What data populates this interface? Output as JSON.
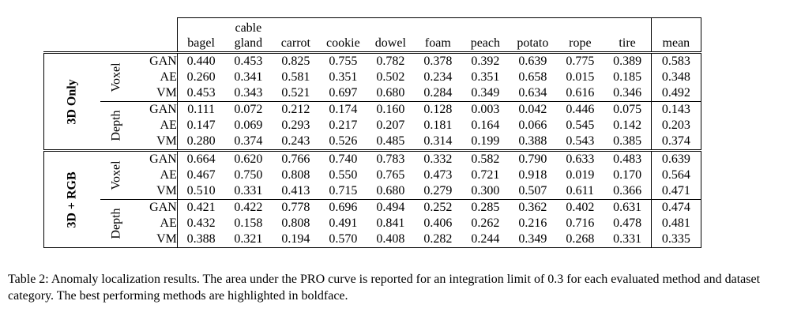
{
  "table": {
    "columns": [
      "bagel",
      "cable gland",
      "carrot",
      "cookie",
      "dowel",
      "foam",
      "peach",
      "potato",
      "rope",
      "tire",
      "mean"
    ],
    "groups": [
      {
        "label": "3D Only",
        "subgroups": [
          {
            "label": "Voxel",
            "rows": [
              {
                "method": "GAN",
                "values": [
                  "0.440",
                  "0.453",
                  "0.825",
                  "0.755",
                  "0.782",
                  "0.378",
                  "0.392",
                  "0.639",
                  "0.775",
                  "0.389",
                  "0.583"
                ],
                "bold": [
                  false,
                  true,
                  true,
                  true,
                  true,
                  true,
                  true,
                  false,
                  true,
                  true,
                  true
                ]
              },
              {
                "method": "AE",
                "values": [
                  "0.260",
                  "0.341",
                  "0.581",
                  "0.351",
                  "0.502",
                  "0.234",
                  "0.351",
                  "0.658",
                  "0.015",
                  "0.185",
                  "0.348"
                ],
                "bold": [
                  false,
                  false,
                  false,
                  false,
                  false,
                  false,
                  false,
                  true,
                  false,
                  false,
                  false
                ]
              },
              {
                "method": "VM",
                "values": [
                  "0.453",
                  "0.343",
                  "0.521",
                  "0.697",
                  "0.680",
                  "0.284",
                  "0.349",
                  "0.634",
                  "0.616",
                  "0.346",
                  "0.492"
                ],
                "bold": [
                  true,
                  false,
                  false,
                  false,
                  false,
                  false,
                  false,
                  false,
                  false,
                  false,
                  false
                ]
              }
            ]
          },
          {
            "label": "Depth",
            "rows": [
              {
                "method": "GAN",
                "values": [
                  "0.111",
                  "0.072",
                  "0.212",
                  "0.174",
                  "0.160",
                  "0.128",
                  "0.003",
                  "0.042",
                  "0.446",
                  "0.075",
                  "0.143"
                ],
                "bold": [
                  false,
                  false,
                  false,
                  false,
                  false,
                  false,
                  false,
                  false,
                  false,
                  false,
                  false
                ]
              },
              {
                "method": "AE",
                "values": [
                  "0.147",
                  "0.069",
                  "0.293",
                  "0.217",
                  "0.207",
                  "0.181",
                  "0.164",
                  "0.066",
                  "0.545",
                  "0.142",
                  "0.203"
                ],
                "bold": [
                  false,
                  false,
                  false,
                  false,
                  false,
                  false,
                  false,
                  false,
                  false,
                  false,
                  false
                ]
              },
              {
                "method": "VM",
                "values": [
                  "0.280",
                  "0.374",
                  "0.243",
                  "0.526",
                  "0.485",
                  "0.314",
                  "0.199",
                  "0.388",
                  "0.543",
                  "0.385",
                  "0.374"
                ],
                "bold": [
                  false,
                  false,
                  false,
                  false,
                  false,
                  false,
                  false,
                  false,
                  false,
                  false,
                  false
                ]
              }
            ]
          }
        ]
      },
      {
        "label": "3D + RGB",
        "subgroups": [
          {
            "label": "Voxel",
            "rows": [
              {
                "method": "GAN",
                "values": [
                  "0.664",
                  "0.620",
                  "0.766",
                  "0.740",
                  "0.783",
                  "0.332",
                  "0.582",
                  "0.790",
                  "0.633",
                  "0.483",
                  "0.639"
                ],
                "bold": [
                  true,
                  false,
                  false,
                  true,
                  false,
                  false,
                  false,
                  false,
                  false,
                  false,
                  true
                ]
              },
              {
                "method": "AE",
                "values": [
                  "0.467",
                  "0.750",
                  "0.808",
                  "0.550",
                  "0.765",
                  "0.473",
                  "0.721",
                  "0.918",
                  "0.019",
                  "0.170",
                  "0.564"
                ],
                "bold": [
                  false,
                  true,
                  true,
                  false,
                  false,
                  true,
                  true,
                  true,
                  false,
                  false,
                  false
                ]
              },
              {
                "method": "VM",
                "values": [
                  "0.510",
                  "0.331",
                  "0.413",
                  "0.715",
                  "0.680",
                  "0.279",
                  "0.300",
                  "0.507",
                  "0.611",
                  "0.366",
                  "0.471"
                ],
                "bold": [
                  false,
                  false,
                  false,
                  false,
                  false,
                  false,
                  false,
                  false,
                  false,
                  false,
                  false
                ]
              }
            ]
          },
          {
            "label": "Depth",
            "rows": [
              {
                "method": "GAN",
                "values": [
                  "0.421",
                  "0.422",
                  "0.778",
                  "0.696",
                  "0.494",
                  "0.252",
                  "0.285",
                  "0.362",
                  "0.402",
                  "0.631",
                  "0.474"
                ],
                "bold": [
                  false,
                  false,
                  false,
                  false,
                  false,
                  false,
                  false,
                  false,
                  false,
                  true,
                  false
                ]
              },
              {
                "method": "AE",
                "values": [
                  "0.432",
                  "0.158",
                  "0.808",
                  "0.491",
                  "0.841",
                  "0.406",
                  "0.262",
                  "0.216",
                  "0.716",
                  "0.478",
                  "0.481"
                ],
                "bold": [
                  false,
                  false,
                  true,
                  false,
                  true,
                  false,
                  false,
                  false,
                  true,
                  false,
                  false
                ]
              },
              {
                "method": "VM",
                "values": [
                  "0.388",
                  "0.321",
                  "0.194",
                  "0.570",
                  "0.408",
                  "0.282",
                  "0.244",
                  "0.349",
                  "0.268",
                  "0.331",
                  "0.335"
                ],
                "bold": [
                  false,
                  false,
                  false,
                  false,
                  false,
                  false,
                  false,
                  false,
                  false,
                  false,
                  false
                ]
              }
            ]
          }
        ]
      }
    ]
  },
  "caption": "Table 2: Anomaly localization results. The area under the PRO curve is reported for an integration limit of 0.3 for each evaluated method and dataset category. The best performing methods are highlighted in boldface."
}
